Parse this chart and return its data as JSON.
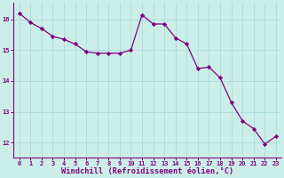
{
  "x": [
    0,
    1,
    2,
    3,
    4,
    5,
    6,
    7,
    8,
    9,
    10,
    11,
    12,
    13,
    14,
    15,
    16,
    17,
    18,
    19,
    20,
    21,
    22,
    23
  ],
  "y": [
    16.2,
    15.9,
    15.7,
    15.45,
    15.35,
    15.2,
    14.95,
    14.9,
    14.9,
    14.9,
    15.0,
    16.15,
    15.85,
    15.85,
    15.4,
    15.2,
    14.4,
    14.45,
    14.1,
    13.3,
    12.7,
    12.45,
    11.95,
    12.2
  ],
  "line_color": "#800080",
  "marker": "D",
  "marker_size": 2.2,
  "bg_color": "#cceee8",
  "grid_color": "#aadddd",
  "xlabel": "Windchill (Refroidissement éolien,°C)",
  "xlim": [
    -0.5,
    23.5
  ],
  "ylim": [
    11.5,
    16.55
  ],
  "yticks": [
    12,
    13,
    14,
    15,
    16
  ],
  "xticks": [
    0,
    1,
    2,
    3,
    4,
    5,
    6,
    7,
    8,
    9,
    10,
    11,
    12,
    13,
    14,
    15,
    16,
    17,
    18,
    19,
    20,
    21,
    22,
    23
  ],
  "tick_color": "#800080",
  "label_color": "#800080",
  "tick_fontsize": 5.0,
  "xlabel_fontsize": 6.2,
  "spine_color": "#800080",
  "linewidth": 0.9
}
